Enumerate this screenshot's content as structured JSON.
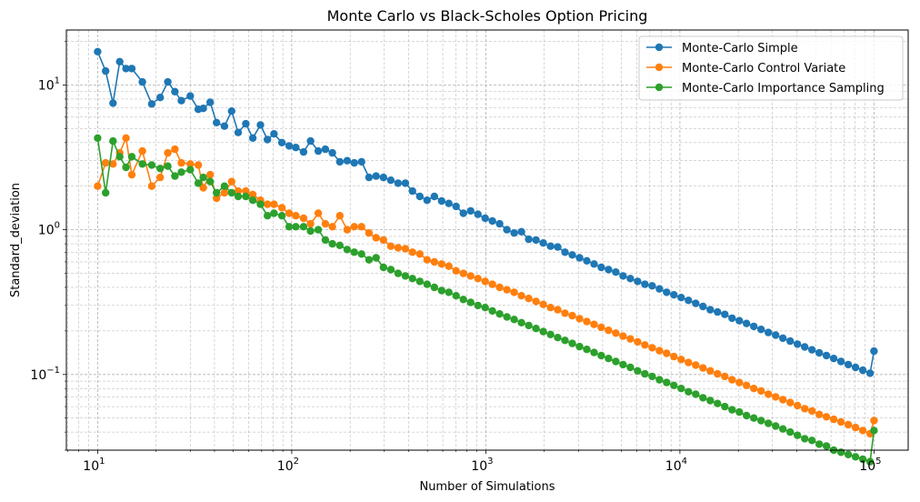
{
  "chart_data": {
    "type": "line",
    "title": "Monte Carlo vs Black-Scholes Option Pricing",
    "xlabel": "Number of Simulations",
    "ylabel": "Standard_deviation",
    "xscale": "log",
    "yscale": "log",
    "xlim": [
      6.9,
      150000
    ],
    "ylim": [
      0.03,
      24
    ],
    "grid": true,
    "legend_position": "top-right",
    "x_major_ticks": [
      {
        "base": "10",
        "exp": "1",
        "value": 10
      },
      {
        "base": "10",
        "exp": "2",
        "value": 100
      },
      {
        "base": "10",
        "exp": "3",
        "value": 1000
      },
      {
        "base": "10",
        "exp": "4",
        "value": 10000
      },
      {
        "base": "10",
        "exp": "5",
        "value": 100000
      }
    ],
    "y_major_ticks": [
      {
        "base": "10",
        "exp": "−1",
        "value": 0.1
      },
      {
        "base": "10",
        "exp": "0",
        "value": 1
      },
      {
        "base": "10",
        "exp": "1",
        "value": 10
      }
    ],
    "x": [
      10,
      11,
      12,
      13,
      14,
      15,
      17,
      19,
      21,
      23,
      25,
      27,
      30,
      33,
      35,
      38,
      41,
      45,
      49,
      53,
      58,
      63,
      69,
      75,
      81,
      89,
      97,
      105,
      115,
      125,
      137,
      149,
      162,
      177,
      193,
      210,
      229,
      250,
      272,
      297,
      324,
      353,
      385,
      419,
      457,
      498,
      543,
      592,
      645,
      703,
      766,
      835,
      910,
      992,
      1081,
      1178,
      1284,
      1400,
      1526,
      1663,
      1813,
      1976,
      2154,
      2347,
      2559,
      2789,
      3039,
      3313,
      3611,
      3936,
      4290,
      4676,
      5097,
      5556,
      6055,
      6600,
      7194,
      7842,
      8547,
      9317,
      10155,
      11069,
      12065,
      13151,
      14334,
      15624,
      17031,
      18564,
      20235,
      22056,
      24041,
      26205,
      28563,
      31134,
      33936,
      36990,
      40320,
      43949,
      47904,
      52216,
      56916,
      62038,
      67621,
      73707,
      80341,
      87571,
      95453,
      100000
    ],
    "series": [
      {
        "name": "Monte-Carlo Simple",
        "color": "#1f77b4",
        "values": [
          17.0,
          12.5,
          7.5,
          14.5,
          13.0,
          13.0,
          10.5,
          7.4,
          8.2,
          10.5,
          9.0,
          7.8,
          8.4,
          6.8,
          6.9,
          7.6,
          5.5,
          5.2,
          6.6,
          4.7,
          5.4,
          4.3,
          5.3,
          4.2,
          4.6,
          4.0,
          3.8,
          3.7,
          3.45,
          4.1,
          3.5,
          3.6,
          3.4,
          2.95,
          3.0,
          2.9,
          2.95,
          2.3,
          2.35,
          2.3,
          2.2,
          2.1,
          2.1,
          1.85,
          1.7,
          1.6,
          1.7,
          1.58,
          1.52,
          1.45,
          1.3,
          1.35,
          1.28,
          1.2,
          1.15,
          1.1,
          1.0,
          0.95,
          0.97,
          0.86,
          0.85,
          0.81,
          0.77,
          0.76,
          0.7,
          0.67,
          0.64,
          0.61,
          0.58,
          0.55,
          0.53,
          0.51,
          0.48,
          0.46,
          0.44,
          0.42,
          0.41,
          0.39,
          0.37,
          0.355,
          0.34,
          0.325,
          0.31,
          0.295,
          0.28,
          0.27,
          0.26,
          0.245,
          0.235,
          0.225,
          0.215,
          0.205,
          0.195,
          0.187,
          0.178,
          0.17,
          0.162,
          0.155,
          0.148,
          0.141,
          0.135,
          0.129,
          0.123,
          0.117,
          0.112,
          0.107,
          0.102,
          0.145
        ]
      },
      {
        "name": "Monte-Carlo Control Variate",
        "color": "#ff7f0e",
        "values": [
          2.0,
          2.9,
          2.85,
          3.4,
          4.3,
          2.4,
          3.5,
          2.0,
          2.3,
          3.4,
          3.6,
          2.9,
          2.85,
          2.8,
          1.95,
          2.4,
          1.65,
          1.8,
          2.15,
          1.85,
          1.85,
          1.75,
          1.6,
          1.5,
          1.5,
          1.42,
          1.3,
          1.25,
          1.2,
          1.1,
          1.3,
          1.1,
          1.05,
          1.25,
          1.0,
          1.05,
          1.05,
          0.95,
          0.88,
          0.85,
          0.77,
          0.75,
          0.74,
          0.7,
          0.68,
          0.62,
          0.6,
          0.58,
          0.56,
          0.52,
          0.5,
          0.48,
          0.46,
          0.44,
          0.42,
          0.4,
          0.385,
          0.37,
          0.35,
          0.335,
          0.32,
          0.305,
          0.29,
          0.28,
          0.265,
          0.255,
          0.243,
          0.232,
          0.222,
          0.212,
          0.202,
          0.193,
          0.184,
          0.176,
          0.168,
          0.16,
          0.153,
          0.146,
          0.14,
          0.133,
          0.127,
          0.121,
          0.116,
          0.111,
          0.106,
          0.101,
          0.097,
          0.092,
          0.088,
          0.084,
          0.08,
          0.077,
          0.073,
          0.07,
          0.067,
          0.064,
          0.061,
          0.058,
          0.056,
          0.053,
          0.051,
          0.049,
          0.047,
          0.045,
          0.043,
          0.041,
          0.039,
          0.048
        ]
      },
      {
        "name": "Monte-Carlo Importance Sampling",
        "color": "#2ca02c",
        "values": [
          4.3,
          1.8,
          4.1,
          3.2,
          2.7,
          3.2,
          2.85,
          2.8,
          2.65,
          2.75,
          2.35,
          2.5,
          2.6,
          2.1,
          2.3,
          2.15,
          1.8,
          2.0,
          1.8,
          1.7,
          1.7,
          1.6,
          1.5,
          1.25,
          1.3,
          1.25,
          1.05,
          1.05,
          1.05,
          0.98,
          1.0,
          0.85,
          0.8,
          0.78,
          0.73,
          0.7,
          0.68,
          0.62,
          0.64,
          0.55,
          0.53,
          0.5,
          0.48,
          0.46,
          0.44,
          0.42,
          0.4,
          0.38,
          0.37,
          0.35,
          0.33,
          0.315,
          0.3,
          0.29,
          0.275,
          0.262,
          0.25,
          0.24,
          0.228,
          0.218,
          0.208,
          0.198,
          0.189,
          0.18,
          0.172,
          0.164,
          0.156,
          0.149,
          0.142,
          0.135,
          0.129,
          0.123,
          0.117,
          0.112,
          0.106,
          0.101,
          0.097,
          0.092,
          0.088,
          0.084,
          0.08,
          0.076,
          0.073,
          0.069,
          0.066,
          0.063,
          0.06,
          0.057,
          0.055,
          0.052,
          0.05,
          0.048,
          0.046,
          0.044,
          0.042,
          0.04,
          0.038,
          0.036,
          0.035,
          0.033,
          0.032,
          0.03,
          0.029,
          0.028,
          0.027,
          0.026,
          0.025,
          0.041
        ]
      }
    ]
  }
}
